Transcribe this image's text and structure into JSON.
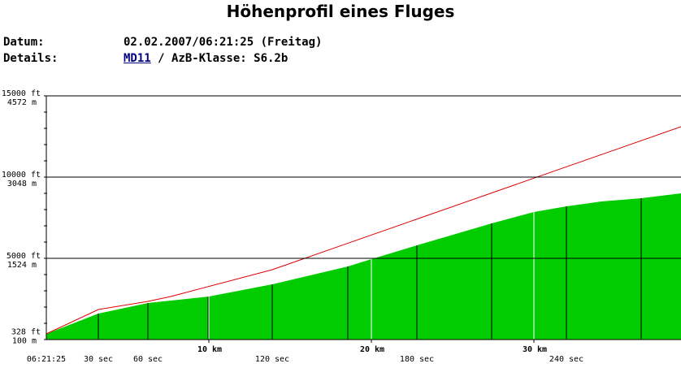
{
  "header": {
    "date_label": "Datum:",
    "date_value": "02.02.2007/06:21:25 (Freitag)",
    "details_label": "Details:",
    "aircraft": "MD11",
    "details_value": " / AzB-Klasse: S6.2b"
  },
  "chart_data": {
    "type": "area",
    "title": "Höhenprofil eines Fluges",
    "xlim": [
      0,
      39.05
    ],
    "ylim": [
      0,
      15000
    ],
    "xticks": [
      {
        "value": 10,
        "label": "10 km"
      },
      {
        "value": 20,
        "label": "20 km"
      },
      {
        "value": 30,
        "label": "30 km"
      }
    ],
    "time_ticks": [
      {
        "value": 0,
        "label": "06:21:25"
      },
      {
        "value": 3.2,
        "label": "30 sec"
      },
      {
        "value": 6.25,
        "label": "60 sec"
      },
      {
        "value": 9.95,
        "label": null
      },
      {
        "value": 13.9,
        "label": "120 sec"
      },
      {
        "value": 18.55,
        "label": null
      },
      {
        "value": 22.8,
        "label": "180 sec"
      },
      {
        "value": 27.4,
        "label": null
      },
      {
        "value": 32,
        "label": "240 sec"
      },
      {
        "value": 36.6,
        "label": null
      }
    ],
    "yticks": [
      {
        "value": 15000,
        "label": "15000 ft"
      },
      {
        "value": 10000,
        "label": "10000 ft"
      },
      {
        "value": 5000,
        "label": "5000 ft"
      },
      {
        "value": 328,
        "label": "328 ft"
      }
    ],
    "yticks_m": [
      {
        "value": 15000,
        "label": "4572 m"
      },
      {
        "value": 10000,
        "label": "3048 m"
      },
      {
        "value": 5000,
        "label": "1524 m"
      },
      {
        "value": 328,
        "label": "100 m"
      }
    ],
    "yminor": 1000,
    "grid": true,
    "series": [
      {
        "style": "area",
        "color": "#00cc00",
        "x": [
          0,
          3.2,
          6.25,
          10,
          13.9,
          18.55,
          20,
          22.8,
          27.4,
          30,
          32,
          34.15,
          36.6,
          39.05
        ],
        "values": [
          350,
          1600,
          2250,
          2650,
          3400,
          4500,
          4950,
          5800,
          7150,
          7850,
          8200,
          8500,
          8700,
          9000
        ]
      },
      {
        "style": "line",
        "color": "#dd0000",
        "x": [
          0,
          3.2,
          6.25,
          7.65,
          13.9,
          39.05
        ],
        "values": [
          350,
          1850,
          2350,
          2650,
          4300,
          13100
        ]
      }
    ]
  }
}
